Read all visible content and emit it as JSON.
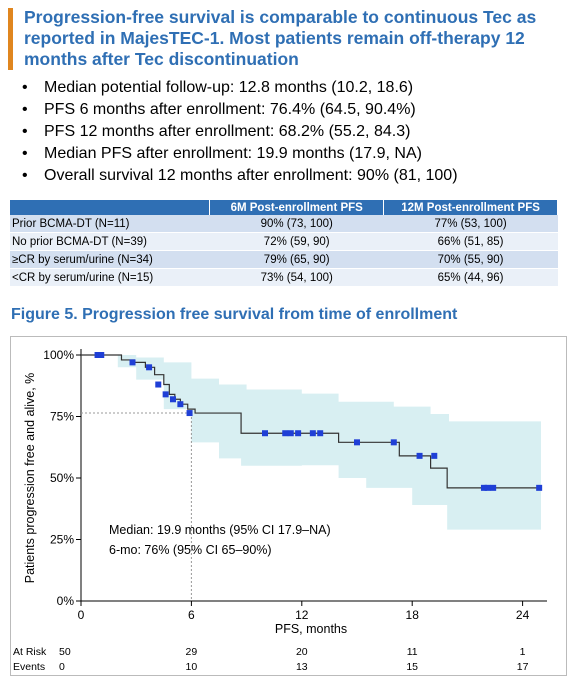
{
  "title": {
    "lines": [
      "Progression-free survival is comparable to continuous Tec as",
      "reported in MajesTEC-1. Most patients remain off-therapy 12",
      "months after Tec discontinuation"
    ]
  },
  "bullets": [
    "Median potential follow-up: 12.8 months (10.2, 18.6)",
    "PFS 6 months after enrollment: 76.4% (64.5, 90.4%)",
    "PFS 12 months after enrollment: 68.2% (55.2, 84.3)",
    "Median PFS after enrollment: 19.9 months (17.9, NA)",
    "Overall survival 12 months after enrollment: 90% (81, 100)"
  ],
  "table": {
    "headers": [
      "",
      "6M Post-enrollment PFS",
      "12M Post-enrollment PFS"
    ],
    "rows": [
      [
        "Prior BCMA-DT (N=11)",
        "90% (73, 100)",
        "77% (53, 100)"
      ],
      [
        "No prior BCMA-DT (N=39)",
        "72% (59, 90)",
        "66% (51, 85)"
      ],
      [
        "≥CR by serum/urine (N=34)",
        "79% (65, 90)",
        "70% (55, 90)"
      ],
      [
        "<CR by serum/urine (N=15)",
        "73% (54, 100)",
        "65% (44, 96)"
      ]
    ]
  },
  "figure_title": "Figure 5. Progression free survival from time of enrollment",
  "chart_data": {
    "type": "line",
    "ylabel": "Patients progression free and alive, %",
    "xlabel": "PFS, months",
    "xlim": [
      0,
      25
    ],
    "ylim": [
      0,
      100
    ],
    "xticks": [
      0,
      6,
      12,
      18,
      24
    ],
    "yticks": [
      0,
      25,
      50,
      75,
      100
    ],
    "ytick_labels": [
      "0%",
      "25%",
      "50%",
      "75%",
      "100%"
    ],
    "survival_curve": {
      "x": [
        0,
        2.2,
        2.9,
        3.5,
        4.0,
        4.5,
        4.8,
        5.1,
        5.4,
        5.8,
        6.2,
        8.7,
        14.0,
        17.3,
        17.9,
        19.0,
        19.9,
        25.0
      ],
      "y": [
        100,
        98,
        97,
        95,
        92,
        88,
        84,
        82,
        80,
        78,
        76.4,
        68.2,
        64.5,
        59,
        59,
        54,
        46,
        46
      ]
    },
    "ci_upper": {
      "x": [
        0,
        1.0,
        2.0,
        3.0,
        4.5,
        6.0,
        7.5,
        9.0,
        12.0,
        14.0,
        17.0,
        19.0,
        20.0,
        25.0
      ],
      "y": [
        100,
        100,
        100,
        99,
        97,
        90.4,
        88,
        86,
        84.3,
        81,
        79,
        76,
        73,
        73
      ]
    },
    "ci_lower": {
      "x": [
        0,
        1.0,
        2.0,
        3.0,
        4.5,
        6.0,
        7.5,
        8.7,
        12.0,
        14.0,
        15.5,
        18.0,
        19.9,
        25.0
      ],
      "y": [
        100,
        100,
        95,
        90,
        78,
        64.5,
        58,
        55,
        55.2,
        50,
        46,
        39,
        29,
        29
      ]
    },
    "censor_marks": {
      "x": [
        0.9,
        1.0,
        1.1,
        2.8,
        3.7,
        4.2,
        4.6,
        5.0,
        5.4,
        5.9,
        10.0,
        11.1,
        11.4,
        11.8,
        12.6,
        13.0,
        15.0,
        17.0,
        18.4,
        19.2,
        21.9,
        22.1,
        22.4,
        24.9
      ],
      "y": [
        100,
        100,
        100,
        97,
        95,
        88,
        84,
        82,
        80,
        76.4,
        68.2,
        68.2,
        68.2,
        68.2,
        68.2,
        68.2,
        64.5,
        64.5,
        59,
        59,
        46,
        46,
        46,
        46
      ]
    },
    "reference_6mo": {
      "x": 6,
      "y": 76.4
    },
    "annotation_lines": [
      "Median: 19.9 months (95% CI 17.9–NA)",
      "6-mo: 76% (95% CI 65–90%)"
    ],
    "risk_table": {
      "labels": [
        "At Risk",
        "Events"
      ],
      "times": [
        0,
        6,
        12,
        18,
        24
      ],
      "at_risk": [
        50,
        29,
        20,
        11,
        1
      ],
      "events": [
        0,
        10,
        13,
        15,
        17
      ]
    },
    "colors": {
      "line": "#333333",
      "band": "#d8eff2",
      "marks": "#1f3fd6",
      "reference": "#999999"
    }
  }
}
